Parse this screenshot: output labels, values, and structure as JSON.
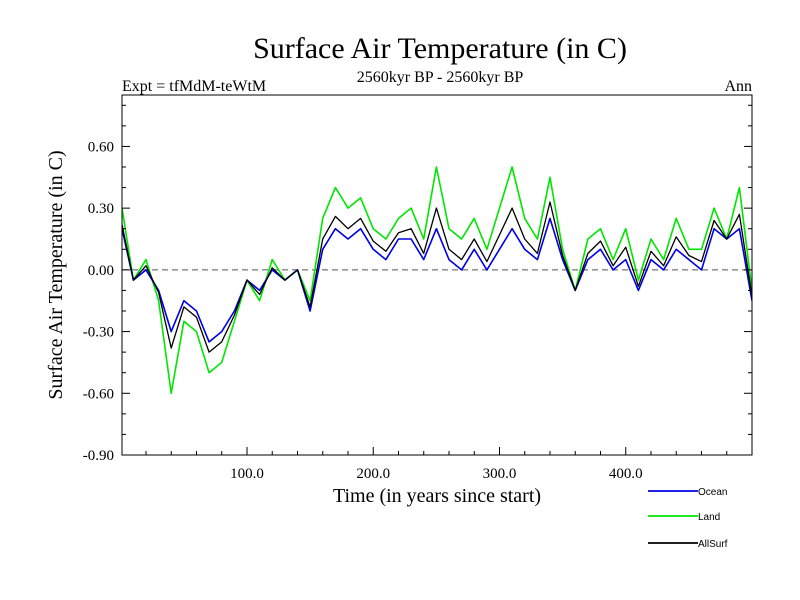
{
  "chart_data": {
    "type": "line",
    "title": "Surface Air Temperature (in C)",
    "subtitle": "2560kyr BP - 2560kyr BP",
    "left_label": "Expt = tfMdM-teWtM",
    "right_label": "Ann",
    "xlabel": "Time (in years since start)",
    "ylabel": "Surface Air Temperature (in C)",
    "xlim": [
      1,
      500
    ],
    "ylim": [
      -0.9,
      0.85
    ],
    "xticks": [
      100,
      200,
      300,
      400
    ],
    "xtick_labels": [
      "100.0",
      "200.0",
      "300.0",
      "400.0"
    ],
    "yticks": [
      -0.9,
      -0.6,
      -0.3,
      0.0,
      0.3,
      0.6
    ],
    "ytick_labels": [
      "-0.90",
      "-0.60",
      "-0.30",
      "0.00",
      "0.30",
      "0.60"
    ],
    "zero_line": 0.0,
    "legend_position": "below-right",
    "series": [
      {
        "name": "Land",
        "color": "#00e600",
        "x": [
          1,
          10,
          20,
          30,
          40,
          50,
          60,
          70,
          80,
          90,
          100,
          110,
          120,
          130,
          140,
          150,
          160,
          170,
          180,
          190,
          200,
          210,
          220,
          230,
          240,
          250,
          260,
          270,
          280,
          290,
          300,
          310,
          320,
          330,
          340,
          350,
          360,
          370,
          380,
          390,
          400,
          410,
          420,
          430,
          440,
          450,
          460,
          470,
          480,
          490,
          500
        ],
        "values": [
          0.3,
          -0.05,
          0.05,
          -0.15,
          -0.6,
          -0.25,
          -0.3,
          -0.5,
          -0.45,
          -0.25,
          -0.05,
          -0.15,
          0.05,
          -0.05,
          0.0,
          -0.15,
          0.25,
          0.4,
          0.3,
          0.35,
          0.2,
          0.15,
          0.25,
          0.3,
          0.15,
          0.5,
          0.2,
          0.15,
          0.25,
          0.1,
          0.3,
          0.5,
          0.25,
          0.15,
          0.45,
          0.1,
          -0.1,
          0.15,
          0.2,
          0.05,
          0.2,
          -0.05,
          0.15,
          0.05,
          0.25,
          0.1,
          0.1,
          0.3,
          0.15,
          0.4,
          -0.1
        ]
      },
      {
        "name": "Ocean",
        "color": "#0000e6",
        "x": [
          1,
          10,
          20,
          30,
          40,
          50,
          60,
          70,
          80,
          90,
          100,
          110,
          120,
          130,
          140,
          150,
          160,
          170,
          180,
          190,
          200,
          210,
          220,
          230,
          240,
          250,
          260,
          270,
          280,
          290,
          300,
          310,
          320,
          330,
          340,
          350,
          360,
          370,
          380,
          390,
          400,
          410,
          420,
          430,
          440,
          450,
          460,
          470,
          480,
          490,
          500
        ],
        "values": [
          0.2,
          -0.05,
          0.0,
          -0.1,
          -0.3,
          -0.15,
          -0.2,
          -0.35,
          -0.3,
          -0.2,
          -0.05,
          -0.1,
          0.0,
          -0.05,
          0.0,
          -0.2,
          0.1,
          0.2,
          0.15,
          0.2,
          0.1,
          0.05,
          0.15,
          0.15,
          0.05,
          0.2,
          0.05,
          0.0,
          0.1,
          0.0,
          0.1,
          0.2,
          0.1,
          0.05,
          0.25,
          0.05,
          -0.1,
          0.05,
          0.1,
          0.0,
          0.05,
          -0.1,
          0.05,
          0.0,
          0.1,
          0.05,
          0.0,
          0.2,
          0.15,
          0.2,
          -0.15
        ]
      },
      {
        "name": "AllSurf",
        "color": "#000000",
        "x": [
          1,
          10,
          20,
          30,
          40,
          50,
          60,
          70,
          80,
          90,
          100,
          110,
          120,
          130,
          140,
          150,
          160,
          170,
          180,
          190,
          200,
          210,
          220,
          230,
          240,
          250,
          260,
          270,
          280,
          290,
          300,
          310,
          320,
          330,
          340,
          350,
          360,
          370,
          380,
          390,
          400,
          410,
          420,
          430,
          440,
          450,
          460,
          470,
          480,
          490,
          500
        ],
        "values": [
          0.22,
          -0.05,
          0.02,
          -0.11,
          -0.38,
          -0.18,
          -0.23,
          -0.4,
          -0.35,
          -0.22,
          -0.05,
          -0.12,
          0.01,
          -0.05,
          0.0,
          -0.18,
          0.15,
          0.26,
          0.2,
          0.25,
          0.14,
          0.09,
          0.18,
          0.2,
          0.08,
          0.3,
          0.1,
          0.05,
          0.15,
          0.04,
          0.17,
          0.3,
          0.15,
          0.08,
          0.33,
          0.07,
          -0.1,
          0.08,
          0.14,
          0.02,
          0.11,
          -0.08,
          0.09,
          0.02,
          0.16,
          0.07,
          0.04,
          0.24,
          0.15,
          0.27,
          -0.13
        ]
      }
    ]
  }
}
